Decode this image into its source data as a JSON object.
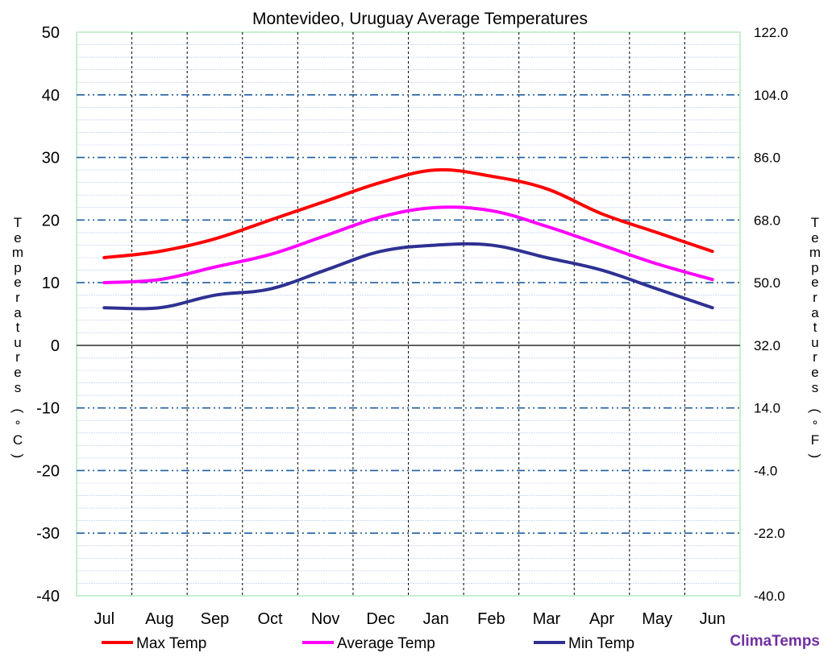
{
  "chart_data": {
    "type": "line",
    "title": "Montevideo, Uruguay Average Temperatures",
    "categories": [
      "Jul",
      "Aug",
      "Sep",
      "Oct",
      "Nov",
      "Dec",
      "Jan",
      "Feb",
      "Mar",
      "Apr",
      "May",
      "Jun"
    ],
    "series": [
      {
        "name": "Max Temp",
        "color": "#ff0000",
        "values": [
          14,
          15,
          17,
          20,
          23,
          26,
          28,
          27,
          25,
          21,
          18,
          15
        ]
      },
      {
        "name": "Average Temp",
        "color": "#ff00ff",
        "values": [
          10,
          10.5,
          12.5,
          14.5,
          17.5,
          20.5,
          22,
          21.5,
          19,
          16,
          13,
          10.5
        ]
      },
      {
        "name": "Min Temp",
        "color": "#2e3192",
        "values": [
          6,
          6,
          8,
          9,
          12,
          15,
          16,
          16,
          14,
          12,
          9,
          6
        ]
      }
    ],
    "ylabel_left": "Temperatures (°C)",
    "ylabel_right": "Temperatures (°F)",
    "ylim": [
      -40,
      50
    ],
    "yticks_left": [
      "50",
      "40",
      "30",
      "20",
      "10",
      "0",
      "-10",
      "-20",
      "-30",
      "-40"
    ],
    "yticks_right": [
      "122.0",
      "104.0",
      "86.0",
      "68.0",
      "50.0",
      "32.0",
      "14.0",
      "-4.0",
      "-22.0",
      "-40.0"
    ],
    "legend_position": "bottom",
    "grid": true
  },
  "brand": "ClimaTemps"
}
